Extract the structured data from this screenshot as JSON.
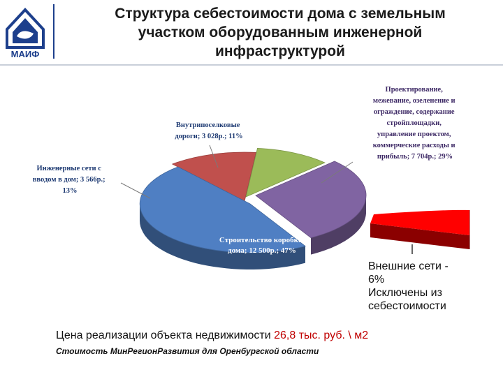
{
  "header": {
    "title_lines": [
      "Структура себестоимости дома с земельным",
      "участком оборудованным инженерной",
      "инфраструктурой"
    ],
    "logo_text": "МАИФ"
  },
  "chart_data": {
    "type": "pie",
    "title": "",
    "slices": [
      {
        "value": 47,
        "amount": "12 500р.",
        "color": "#4f7fc3",
        "label_lines": [
          "Строительство коробки",
          "дома; 12 500р.; 47%"
        ]
      },
      {
        "value": 13,
        "amount": "3 566р.",
        "color": "#c0504d",
        "label_lines": [
          "Инженерные сети с",
          "вводом в дом; 3 566р.;",
          "13%"
        ]
      },
      {
        "value": 11,
        "amount": "3 028р.",
        "color": "#9bbb59",
        "label_lines": [
          "Внутрипоселковые",
          "дороги; 3 028р.; 11%"
        ]
      },
      {
        "value": 29,
        "amount": "7 704р.",
        "color": "#8064a2",
        "label_lines": [
          "Проектирование,",
          "межевание, озеленение и",
          "ограждение, содержание",
          "стройплощадки,",
          "управление проектом,",
          "коммерческие расходы и",
          "прибыль; 7 704р.; 29%"
        ]
      }
    ],
    "excluded": {
      "value": 6,
      "color": "#ff0000",
      "note": "Внешние сети -\n6%\nИсключены из\nсебестоимости"
    }
  },
  "footer": {
    "price_prefix": "Цена реализации объекта недвижимости ",
    "price_value": "26,8 тыс. руб. \\ м2",
    "source": "Стоимость МинРегионРазвития для Оренбургской области"
  }
}
